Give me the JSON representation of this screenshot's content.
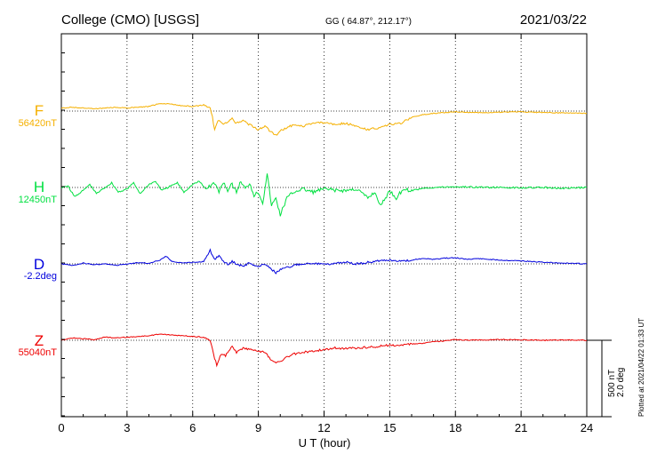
{
  "header": {
    "station": "College (CMO)  [USGS]",
    "coords": "GG ( 64.87°, 212.17°)",
    "date": "2021/03/22"
  },
  "plotted": "Plotted at 2021/04/22 01:33 UT",
  "scale": {
    "nt": "500 nT",
    "deg": "2.0 deg"
  },
  "chart_data": {
    "type": "line",
    "xlabel": "U T (hour)",
    "xlim": [
      0,
      24
    ],
    "xticks": [
      "0",
      "3",
      "6",
      "9",
      "12",
      "15",
      "18",
      "21",
      "24"
    ],
    "scale_nT_per_bar": 500,
    "scale_deg_per_bar": 2.0,
    "colors": {
      "F": "#f5b000",
      "H": "#00e040",
      "D": "#0000dd",
      "Z": "#ee0000"
    },
    "series": [
      {
        "name": "F",
        "baseline_label": "56420nT",
        "baseline": 56420,
        "unit": "nT",
        "x": [
          0,
          0.5,
          1,
          1.5,
          2,
          2.5,
          3,
          3.5,
          4,
          4.5,
          5,
          5.5,
          6,
          6.5,
          6.8,
          6.9,
          7,
          7.1,
          7.2,
          7.4,
          7.6,
          7.8,
          8,
          8.3,
          8.6,
          9,
          9.3,
          9.6,
          9.8,
          10,
          10.3,
          10.6,
          11,
          11.5,
          12,
          12.5,
          13,
          13.5,
          14,
          14.5,
          15,
          15.5,
          16,
          16.5,
          17,
          17.5,
          18,
          18.5,
          19,
          20,
          21,
          22,
          23,
          24
        ],
        "values": [
          56440,
          56445,
          56440,
          56435,
          56440,
          56445,
          56440,
          56445,
          56450,
          56470,
          56465,
          56455,
          56450,
          56460,
          56440,
          56380,
          56300,
          56340,
          56360,
          56330,
          56350,
          56370,
          56340,
          56360,
          56330,
          56300,
          56320,
          56280,
          56260,
          56290,
          56310,
          56330,
          56320,
          56340,
          56345,
          56335,
          56340,
          56320,
          56300,
          56310,
          56330,
          56340,
          56380,
          56395,
          56405,
          56410,
          56415,
          56412,
          56410,
          56412,
          56415,
          56410,
          56408,
          56405
        ]
      },
      {
        "name": "H",
        "baseline_label": "12450nT",
        "baseline": 12450,
        "unit": "nT",
        "x": [
          0,
          0.3,
          0.6,
          1,
          1.3,
          1.6,
          2,
          2.3,
          2.6,
          3,
          3.3,
          3.6,
          4,
          4.3,
          4.6,
          5,
          5.3,
          5.6,
          6,
          6.3,
          6.6,
          7,
          7.2,
          7.4,
          7.6,
          7.8,
          8,
          8.2,
          8.4,
          8.6,
          8.8,
          9,
          9.2,
          9.4,
          9.6,
          9.8,
          10,
          10.3,
          10.6,
          11,
          11.5,
          12,
          12.5,
          13,
          13.5,
          14,
          14.3,
          14.6,
          15,
          15.3,
          15.6,
          16,
          16.5,
          17,
          18,
          19,
          20,
          21,
          22,
          23,
          24
        ],
        "values": [
          12450,
          12460,
          12390,
          12430,
          12470,
          12410,
          12450,
          12480,
          12420,
          12440,
          12480,
          12410,
          12470,
          12490,
          12430,
          12460,
          12480,
          12420,
          12470,
          12490,
          12440,
          12480,
          12420,
          12490,
          12430,
          12470,
          12420,
          12490,
          12440,
          12480,
          12400,
          12420,
          12350,
          12540,
          12330,
          12380,
          12270,
          12380,
          12420,
          12440,
          12420,
          12440,
          12430,
          12430,
          12440,
          12380,
          12420,
          12330,
          12430,
          12380,
          12440,
          12430,
          12445,
          12450,
          12455,
          12452,
          12450,
          12448,
          12450,
          12445,
          12450
        ]
      },
      {
        "name": "D",
        "baseline_label": "-2.2deg",
        "baseline": -2.2,
        "unit": "deg",
        "x": [
          0,
          0.5,
          1,
          1.5,
          2,
          2.5,
          3,
          3.5,
          4,
          4.5,
          4.8,
          5,
          5.5,
          6,
          6.5,
          6.8,
          7,
          7.2,
          7.4,
          7.6,
          7.8,
          8,
          8.3,
          8.6,
          9,
          9.3,
          9.6,
          9.8,
          10,
          10.3,
          10.6,
          11,
          11.5,
          12,
          12.5,
          13,
          13.5,
          14,
          14.5,
          15,
          15.5,
          16,
          16.5,
          17,
          17.5,
          18,
          18.5,
          19,
          20,
          21,
          22,
          23,
          24
        ],
        "values": [
          -2.2,
          -2.24,
          -2.18,
          -2.22,
          -2.2,
          -2.24,
          -2.2,
          -2.17,
          -2.18,
          -2.1,
          -2.0,
          -2.12,
          -2.18,
          -2.16,
          -2.14,
          -1.85,
          -2.08,
          -1.98,
          -2.12,
          -2.22,
          -2.14,
          -2.2,
          -2.26,
          -2.18,
          -2.28,
          -2.2,
          -2.34,
          -2.44,
          -2.36,
          -2.3,
          -2.24,
          -2.2,
          -2.18,
          -2.22,
          -2.18,
          -2.16,
          -2.2,
          -2.16,
          -2.12,
          -2.1,
          -2.12,
          -2.1,
          -2.06,
          -2.08,
          -2.05,
          -2.04,
          -2.08,
          -2.06,
          -2.1,
          -2.12,
          -2.16,
          -2.18,
          -2.2
        ]
      },
      {
        "name": "Z",
        "baseline_label": "55040nT",
        "baseline": 55040,
        "unit": "nT",
        "x": [
          0,
          0.5,
          1,
          1.5,
          2,
          2.5,
          3,
          3.5,
          4,
          4.5,
          5,
          5.5,
          6,
          6.5,
          6.8,
          7,
          7.1,
          7.3,
          7.5,
          7.8,
          8,
          8.3,
          8.6,
          9,
          9.3,
          9.6,
          9.8,
          10,
          10.3,
          10.6,
          11,
          11.5,
          12,
          12.5,
          13,
          13.5,
          14,
          14.5,
          15,
          15.5,
          16,
          16.5,
          17,
          17.5,
          18,
          18.5,
          19,
          20,
          21,
          22,
          23,
          24
        ],
        "values": [
          55040,
          55055,
          55050,
          55045,
          55060,
          55055,
          55060,
          55065,
          55070,
          55080,
          55075,
          55070,
          55065,
          55060,
          55040,
          54920,
          54880,
          54950,
          54940,
          55000,
          54960,
          54990,
          54980,
          54970,
          54960,
          54910,
          54890,
          54900,
          54930,
          54950,
          54960,
          54970,
          54980,
          54990,
          54985,
          54990,
          54995,
          55000,
          55010,
          55005,
          55015,
          55020,
          55030,
          55035,
          55045,
          55040,
          55042,
          55045,
          55043,
          55040,
          55042,
          55040
        ]
      }
    ]
  }
}
